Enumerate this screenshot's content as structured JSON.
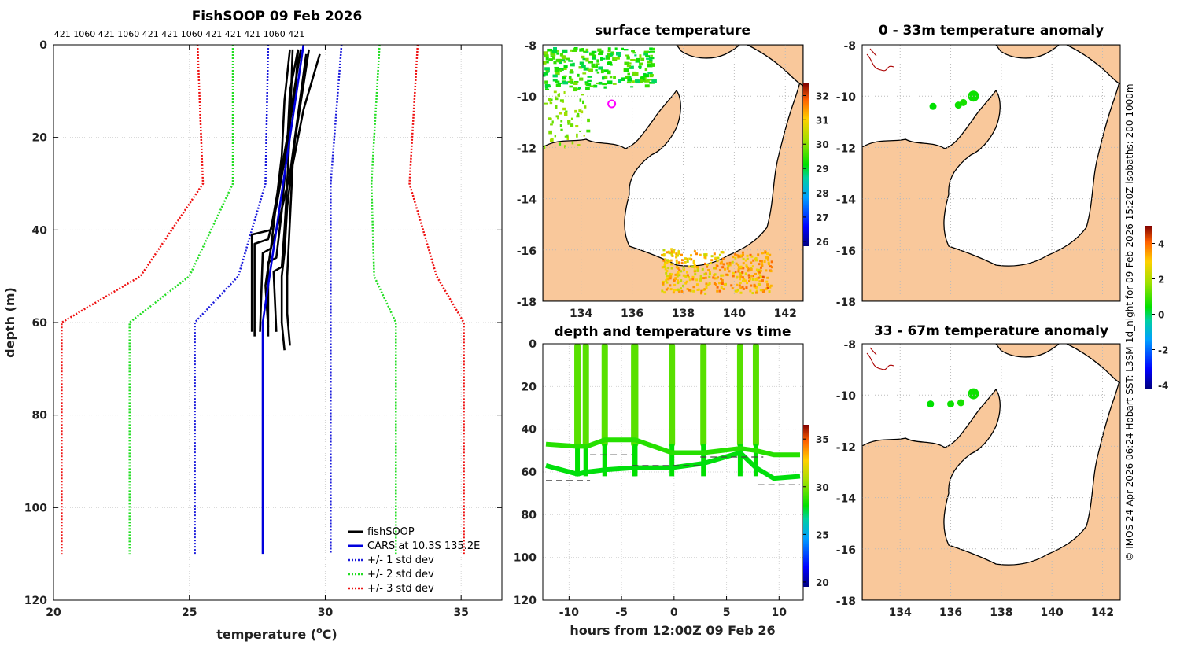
{
  "colors": {
    "land": "#f9c89b",
    "profile": "#000000",
    "cars": "#0000dd",
    "std1": "#1a1adb",
    "std2": "#22dd22",
    "std3": "#ee1111",
    "magenta": "#ff00ff",
    "coast": "#000000",
    "reef": "#aa0000"
  },
  "chart_data": [
    {
      "type": "line",
      "title": "FishSOOP 09 Feb 2026",
      "top_annotation": "421 1060 421 1060 421 421 1060 421 421 421 1060 421",
      "xlabel": "temperature (",
      "xlabel_sup": "o",
      "xlabel_end": "C)",
      "ylabel": "depth (m)",
      "xlim": [
        20,
        36.5
      ],
      "ylim": [
        0,
        120
      ],
      "y_inverted": true,
      "xticks": [
        "20",
        "25",
        "30",
        "35"
      ],
      "yticks": [
        "0",
        "20",
        "40",
        "60",
        "80",
        "100",
        "120"
      ],
      "legend": [
        "fishSOOP",
        "CARS at 10.3S 135.2E",
        "+/- 1 std dev",
        "+/- 2 std dev",
        "+/- 3 std dev"
      ],
      "cars": {
        "depth": [
          0,
          60,
          110
        ],
        "temp": [
          29.2,
          27.7,
          27.7
        ]
      },
      "std_lines": [
        {
          "name": "+/- 3 std dev",
          "depth": [
            0,
            30,
            50,
            60,
            110
          ],
          "low": [
            25.3,
            25.5,
            23.2,
            20.3,
            20.3
          ],
          "high": [
            33.4,
            33.1,
            34.1,
            35.1,
            35.1
          ]
        },
        {
          "name": "+/- 2 std dev",
          "depth": [
            0,
            30,
            50,
            60,
            110
          ],
          "low": [
            26.6,
            26.6,
            25.0,
            22.8,
            22.8
          ],
          "high": [
            32.0,
            31.7,
            31.8,
            32.6,
            32.6
          ]
        },
        {
          "name": "+/- 1 std dev",
          "depth": [
            0,
            30,
            50,
            60,
            110
          ],
          "low": [
            27.9,
            27.8,
            26.8,
            25.2,
            25.2
          ],
          "high": [
            30.6,
            30.2,
            30.2,
            30.2,
            30.2
          ]
        }
      ],
      "profiles": [
        {
          "depth": [
            1,
            10,
            20,
            30,
            40,
            41,
            62
          ],
          "temp": [
            29.0,
            28.9,
            28.6,
            28.3,
            28.0,
            27.3,
            27.3
          ]
        },
        {
          "depth": [
            1,
            12,
            25,
            35,
            42,
            43,
            63
          ],
          "temp": [
            29.1,
            28.8,
            28.5,
            28.2,
            27.9,
            27.4,
            27.4
          ]
        },
        {
          "depth": [
            2,
            15,
            28,
            38,
            44,
            45,
            62
          ],
          "temp": [
            29.3,
            29.0,
            28.7,
            28.3,
            28.0,
            27.7,
            27.6
          ]
        },
        {
          "depth": [
            1,
            10,
            22,
            36,
            46,
            47,
            63
          ],
          "temp": [
            29.0,
            28.7,
            28.6,
            28.4,
            28.2,
            27.9,
            27.9
          ]
        },
        {
          "depth": [
            1,
            18,
            30,
            40,
            48,
            49,
            62
          ],
          "temp": [
            28.8,
            28.7,
            28.6,
            28.5,
            28.4,
            28.1,
            28.2
          ]
        },
        {
          "depth": [
            1,
            20,
            35,
            45,
            50,
            60,
            66
          ],
          "temp": [
            29.4,
            28.9,
            28.6,
            28.5,
            28.4,
            28.4,
            28.5
          ]
        },
        {
          "depth": [
            2,
            14,
            26,
            38,
            50,
            58,
            65
          ],
          "temp": [
            29.8,
            29.2,
            28.8,
            28.7,
            28.6,
            28.6,
            28.7
          ]
        },
        {
          "depth": [
            1,
            12,
            24,
            34,
            44,
            52,
            61
          ],
          "temp": [
            28.7,
            28.5,
            28.4,
            28.2,
            28.0,
            27.8,
            27.9
          ]
        }
      ]
    },
    {
      "type": "heatmap",
      "title": "surface temperature",
      "xticks": [
        "134",
        "136",
        "138",
        "140",
        "142"
      ],
      "yticks": [
        "-8",
        "-10",
        "-12",
        "-14",
        "-16",
        "-18"
      ],
      "lon_range": [
        132.5,
        142.7
      ],
      "lat_range": [
        -18,
        -8
      ],
      "colorbar_ticks": [
        "32",
        "31",
        "30",
        "29",
        "28",
        "27",
        "26"
      ],
      "colorbar_range": [
        25.8,
        32.5
      ],
      "marker": {
        "lon": 135.2,
        "lat": -10.3
      }
    },
    {
      "type": "scatter",
      "title": "0 - 33m temperature anomaly",
      "xticks": [
        "134",
        "136",
        "138",
        "140",
        "142"
      ],
      "yticks": [
        "-8",
        "-10",
        "-12",
        "-14",
        "-16",
        "-18"
      ],
      "lon_range": [
        132.5,
        142.7
      ],
      "lat_range": [
        -18,
        -8
      ],
      "points": [
        {
          "lon": 135.3,
          "lat": -10.4,
          "anomaly": 0.4
        },
        {
          "lon": 136.3,
          "lat": -10.35,
          "anomaly": 0.5
        },
        {
          "lon": 136.5,
          "lat": -10.25,
          "anomaly": 0.6
        },
        {
          "lon": 136.9,
          "lat": -10.0,
          "anomaly": 0.5
        }
      ],
      "colorbar_ticks": [
        "4",
        "2",
        "0",
        "-2",
        "-4"
      ],
      "colorbar_range": [
        -4.2,
        5.0
      ]
    },
    {
      "type": "scatter",
      "title": "33 - 67m temperature anomaly",
      "xticks": [
        "134",
        "136",
        "138",
        "140",
        "142"
      ],
      "yticks": [
        "-8",
        "-10",
        "-12",
        "-14",
        "-16",
        "-18"
      ],
      "lon_range": [
        132.5,
        142.7
      ],
      "lat_range": [
        -18,
        -8
      ],
      "points": [
        {
          "lon": 135.2,
          "lat": -10.35,
          "anomaly": 0.4
        },
        {
          "lon": 136.0,
          "lat": -10.35,
          "anomaly": 0.5
        },
        {
          "lon": 136.4,
          "lat": -10.3,
          "anomaly": 0.6
        },
        {
          "lon": 136.9,
          "lat": -9.95,
          "anomaly": 0.5
        }
      ]
    },
    {
      "type": "scatter",
      "title": "depth and temperature vs time",
      "xlabel": "hours from 12:00Z 09 Feb 26",
      "xlim": [
        -12.5,
        12.3
      ],
      "ylim": [
        0,
        120
      ],
      "y_inverted": true,
      "xticks": [
        "-10",
        "-5",
        "0",
        "5",
        "10"
      ],
      "yticks": [
        "0",
        "20",
        "40",
        "60",
        "80",
        "100",
        "120"
      ],
      "colorbar_ticks": [
        "35",
        "30",
        "25",
        "20"
      ],
      "colorbar_range": [
        19.5,
        36.5
      ],
      "casts_hours": [
        -9.2,
        -8.4,
        -6.6,
        -3.8,
        -3.7,
        -0.2,
        2.8,
        6.3,
        7.8
      ],
      "upper_line": {
        "hours": [
          -12.2,
          -9.3,
          -8.3,
          -6.6,
          -3.7,
          -0.2,
          2.8,
          6.3,
          7.8,
          9.5,
          12.0
        ],
        "depth": [
          47,
          48,
          48,
          45,
          45,
          51,
          51,
          49,
          50,
          52,
          52
        ]
      },
      "lower_line": {
        "hours": [
          -12.2,
          -9.2,
          -8.3,
          -6.6,
          -3.7,
          -0.2,
          2.8,
          6.3,
          7.8,
          9.5,
          12.0
        ],
        "depth": [
          57,
          61,
          60,
          59,
          58,
          58,
          56,
          51,
          58,
          63,
          62
        ]
      },
      "dashed_lines": [
        {
          "hours": [
            -12.2,
            -8.0
          ],
          "depth": 64
        },
        {
          "hours": [
            -8.0,
            -4.0
          ],
          "depth": 52
        },
        {
          "hours": [
            -4.0,
            2.5
          ],
          "depth": 57
        },
        {
          "hours": [
            2.5,
            8.5
          ],
          "depth": 53
        },
        {
          "hours": [
            8.0,
            12.0
          ],
          "depth": 66
        }
      ]
    }
  ],
  "footer": {
    "credit": "© IMOS 24-Apr-2026 06:24 Hobart SST: L3SM-1d_night for 09-Feb-2026 15:20Z isobaths: 200  1000m"
  }
}
